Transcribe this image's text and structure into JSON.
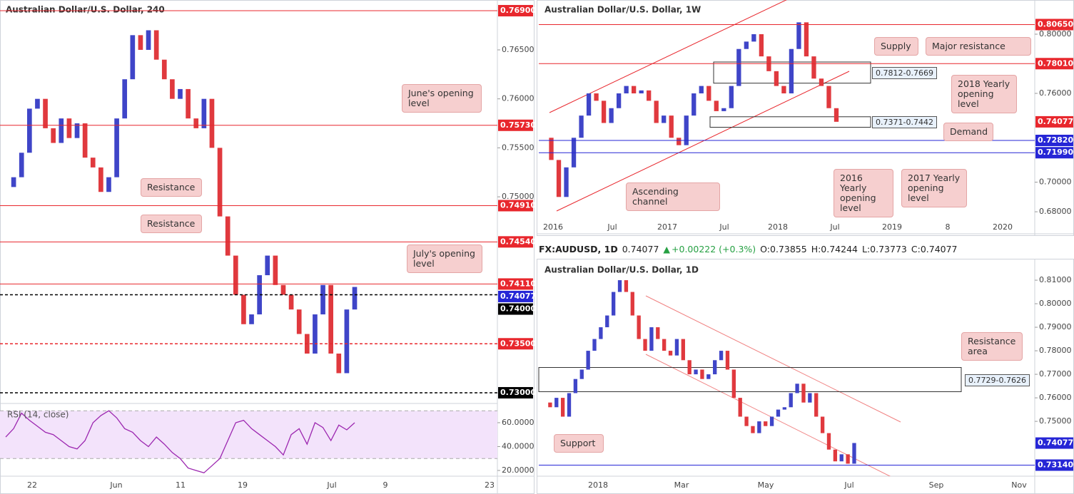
{
  "chart_data": [
    {
      "type": "candlestick",
      "title": "Australian Dollar/U.S. Dollar, 240",
      "up_color": "#3f45c8",
      "down_color": "#e0393e",
      "values": [
        0.751,
        0.752,
        0.7545,
        0.759,
        0.76,
        0.757,
        0.7555,
        0.758,
        0.756,
        0.7575,
        0.754,
        0.753,
        0.7505,
        0.752,
        0.758,
        0.762,
        0.7665,
        0.765,
        0.767,
        0.764,
        0.762,
        0.76,
        0.761,
        0.758,
        0.757,
        0.76,
        0.755,
        0.748,
        0.744,
        0.74,
        0.737,
        0.738,
        0.742,
        0.744,
        0.741,
        0.74,
        0.7385,
        0.736,
        0.734,
        0.738,
        0.741,
        0.734,
        0.732,
        0.7385,
        0.7408
      ],
      "ylim": [
        0.72898,
        0.77009
      ],
      "yticks": [
        {
          "value": 0.765,
          "label": "0.76500"
        },
        {
          "value": 0.76,
          "label": "0.76000"
        },
        {
          "value": 0.755,
          "label": "0.75500"
        },
        {
          "value": 0.75,
          "label": "0.75000"
        }
      ],
      "x_labels": [
        "22",
        "Jun",
        "11",
        "19",
        "Jul",
        "9",
        "23"
      ],
      "levels": [
        {
          "value": 0.769,
          "label": "0.76900",
          "color": "#e8272d",
          "dash": false,
          "line": true
        },
        {
          "value": 0.7573,
          "label": "0.75730",
          "color": "#e8272d",
          "dash": false,
          "line": true
        },
        {
          "value": 0.7491,
          "label": "0.74910",
          "color": "#e8272d",
          "dash": false,
          "line": true
        },
        {
          "value": 0.7454,
          "label": "0.74540",
          "color": "#e8272d",
          "dash": false,
          "line": true
        },
        {
          "value": 0.7411,
          "label": "0.74110",
          "color": "#e8272d",
          "dash": false,
          "line": true
        },
        {
          "value": 0.74077,
          "label": "0.74077",
          "color": "#2626d6",
          "dash": false,
          "line": false
        },
        {
          "value": 0.74,
          "label": "0.74000",
          "color": "#000000",
          "dash": true,
          "line": true
        },
        {
          "value": 0.735,
          "label": "0.73500",
          "color": "#e8272d",
          "dash": true,
          "line": true
        },
        {
          "value": 0.73,
          "label": "0.73000",
          "color": "#000000",
          "dash": true,
          "line": true
        }
      ],
      "zones": [],
      "annotations": [
        "June's opening level",
        "Resistance",
        "Resistance",
        "July's opening level"
      ],
      "rsi": {
        "label": "RSI (14, close)",
        "color": "#9c27b0",
        "values": [
          48,
          55,
          68,
          62,
          57,
          52,
          50,
          45,
          40,
          38,
          45,
          60,
          66,
          70,
          64,
          55,
          52,
          45,
          40,
          48,
          42,
          35,
          30,
          22,
          20,
          18,
          24,
          30,
          45,
          60,
          62,
          55,
          50,
          45,
          40,
          33,
          50,
          55,
          42,
          60,
          56,
          45,
          58,
          54,
          60
        ],
        "ylim": [
          15.2,
          75.5
        ],
        "yticks": [
          {
            "value": 60,
            "label": "60.0000"
          },
          {
            "value": 40,
            "label": "40.0000"
          },
          {
            "value": 20,
            "label": "20.0000"
          }
        ],
        "bands": [
          30,
          70
        ]
      }
    },
    {
      "type": "candlestick",
      "title": "Australian Dollar/U.S. Dollar, 1W",
      "up_color": "#3f45c8",
      "down_color": "#e0393e",
      "values": [
        0.73,
        0.715,
        0.69,
        0.71,
        0.73,
        0.745,
        0.76,
        0.755,
        0.74,
        0.75,
        0.76,
        0.765,
        0.76,
        0.762,
        0.755,
        0.74,
        0.745,
        0.73,
        0.725,
        0.745,
        0.76,
        0.765,
        0.755,
        0.748,
        0.75,
        0.765,
        0.79,
        0.795,
        0.8,
        0.785,
        0.775,
        0.765,
        0.76,
        0.79,
        0.808,
        0.785,
        0.77,
        0.765,
        0.75,
        0.7408
      ],
      "ylim": [
        0.6651,
        0.8231
      ],
      "yticks": [
        {
          "value": 0.8,
          "label": "0.80000"
        },
        {
          "value": 0.76,
          "label": "0.76000"
        },
        {
          "value": 0.7,
          "label": "0.70000"
        },
        {
          "value": 0.68,
          "label": "0.68000"
        }
      ],
      "x_labels": [
        "2016",
        "Jul",
        "2017",
        "Jul",
        "2018",
        "Jul",
        "2019",
        "8",
        "2020"
      ],
      "levels": [
        {
          "value": 0.8065,
          "label": "0.80650",
          "color": "#e8272d",
          "dash": false,
          "line": true
        },
        {
          "value": 0.7801,
          "label": "0.78010",
          "color": "#e8272d",
          "dash": false,
          "line": true
        },
        {
          "value": 0.74077,
          "label": "0.74077",
          "color": "#e8272d",
          "dash": false,
          "line": false
        },
        {
          "value": 0.7282,
          "label": "0.72820",
          "color": "#2626d6",
          "dash": false,
          "line": true
        },
        {
          "value": 0.7199,
          "label": "0.71990",
          "color": "#2626d6",
          "dash": false,
          "line": true
        }
      ],
      "zones": [
        {
          "label": "0.7812-0.7669",
          "high": 0.7812,
          "low": 0.7669
        },
        {
          "label": "0.7371-0.7442",
          "high": 0.7442,
          "low": 0.7371
        }
      ],
      "annotations": [
        "Supply",
        "Major resistance",
        "2018 Yearly opening level",
        "Demand",
        "2016 Yearly opening level",
        "2017 Yearly opening level",
        "Ascending channel"
      ]
    },
    {
      "type": "candlestick",
      "title": "Australian Dollar/U.S. Dollar, 1D",
      "up_color": "#3f45c8",
      "down_color": "#e0393e",
      "values": [
        0.758,
        0.756,
        0.76,
        0.752,
        0.762,
        0.768,
        0.772,
        0.78,
        0.785,
        0.79,
        0.795,
        0.805,
        0.81,
        0.805,
        0.795,
        0.785,
        0.78,
        0.79,
        0.785,
        0.78,
        0.778,
        0.785,
        0.776,
        0.77,
        0.772,
        0.768,
        0.77,
        0.776,
        0.78,
        0.772,
        0.76,
        0.752,
        0.748,
        0.745,
        0.75,
        0.748,
        0.752,
        0.755,
        0.756,
        0.762,
        0.766,
        0.758,
        0.762,
        0.752,
        0.745,
        0.738,
        0.733,
        0.736,
        0.732,
        0.7408
      ],
      "ylim": [
        0.7267,
        0.8185
      ],
      "yticks": [
        {
          "value": 0.81,
          "label": "0.81000"
        },
        {
          "value": 0.8,
          "label": "0.80000"
        },
        {
          "value": 0.79,
          "label": "0.79000"
        },
        {
          "value": 0.78,
          "label": "0.78000"
        },
        {
          "value": 0.77,
          "label": "0.77000"
        },
        {
          "value": 0.76,
          "label": "0.76000"
        },
        {
          "value": 0.75,
          "label": "0.75000"
        }
      ],
      "x_labels": [
        "2018",
        "Mar",
        "May",
        "Jul",
        "Sep",
        "Nov"
      ],
      "levels": [
        {
          "value": 0.74077,
          "label": "0.74077",
          "color": "#2626d6",
          "dash": false,
          "line": false
        },
        {
          "value": 0.7314,
          "label": "0.73140",
          "color": "#2626d6",
          "dash": false,
          "line": true
        }
      ],
      "zones": [
        {
          "label": "0.7729-0.7626",
          "high": 0.7729,
          "low": 0.7626
        }
      ],
      "annotations": [
        "Resistance area",
        "Support"
      ]
    }
  ],
  "header_bar": {
    "symbol": "FX:AUDUSD, 1D",
    "last": "0.74077",
    "change": "+0.00222 (+0.3%)",
    "open": "O:0.73855",
    "high": "H:0.74244",
    "low": "L:0.73773",
    "close": "C:0.74077"
  }
}
